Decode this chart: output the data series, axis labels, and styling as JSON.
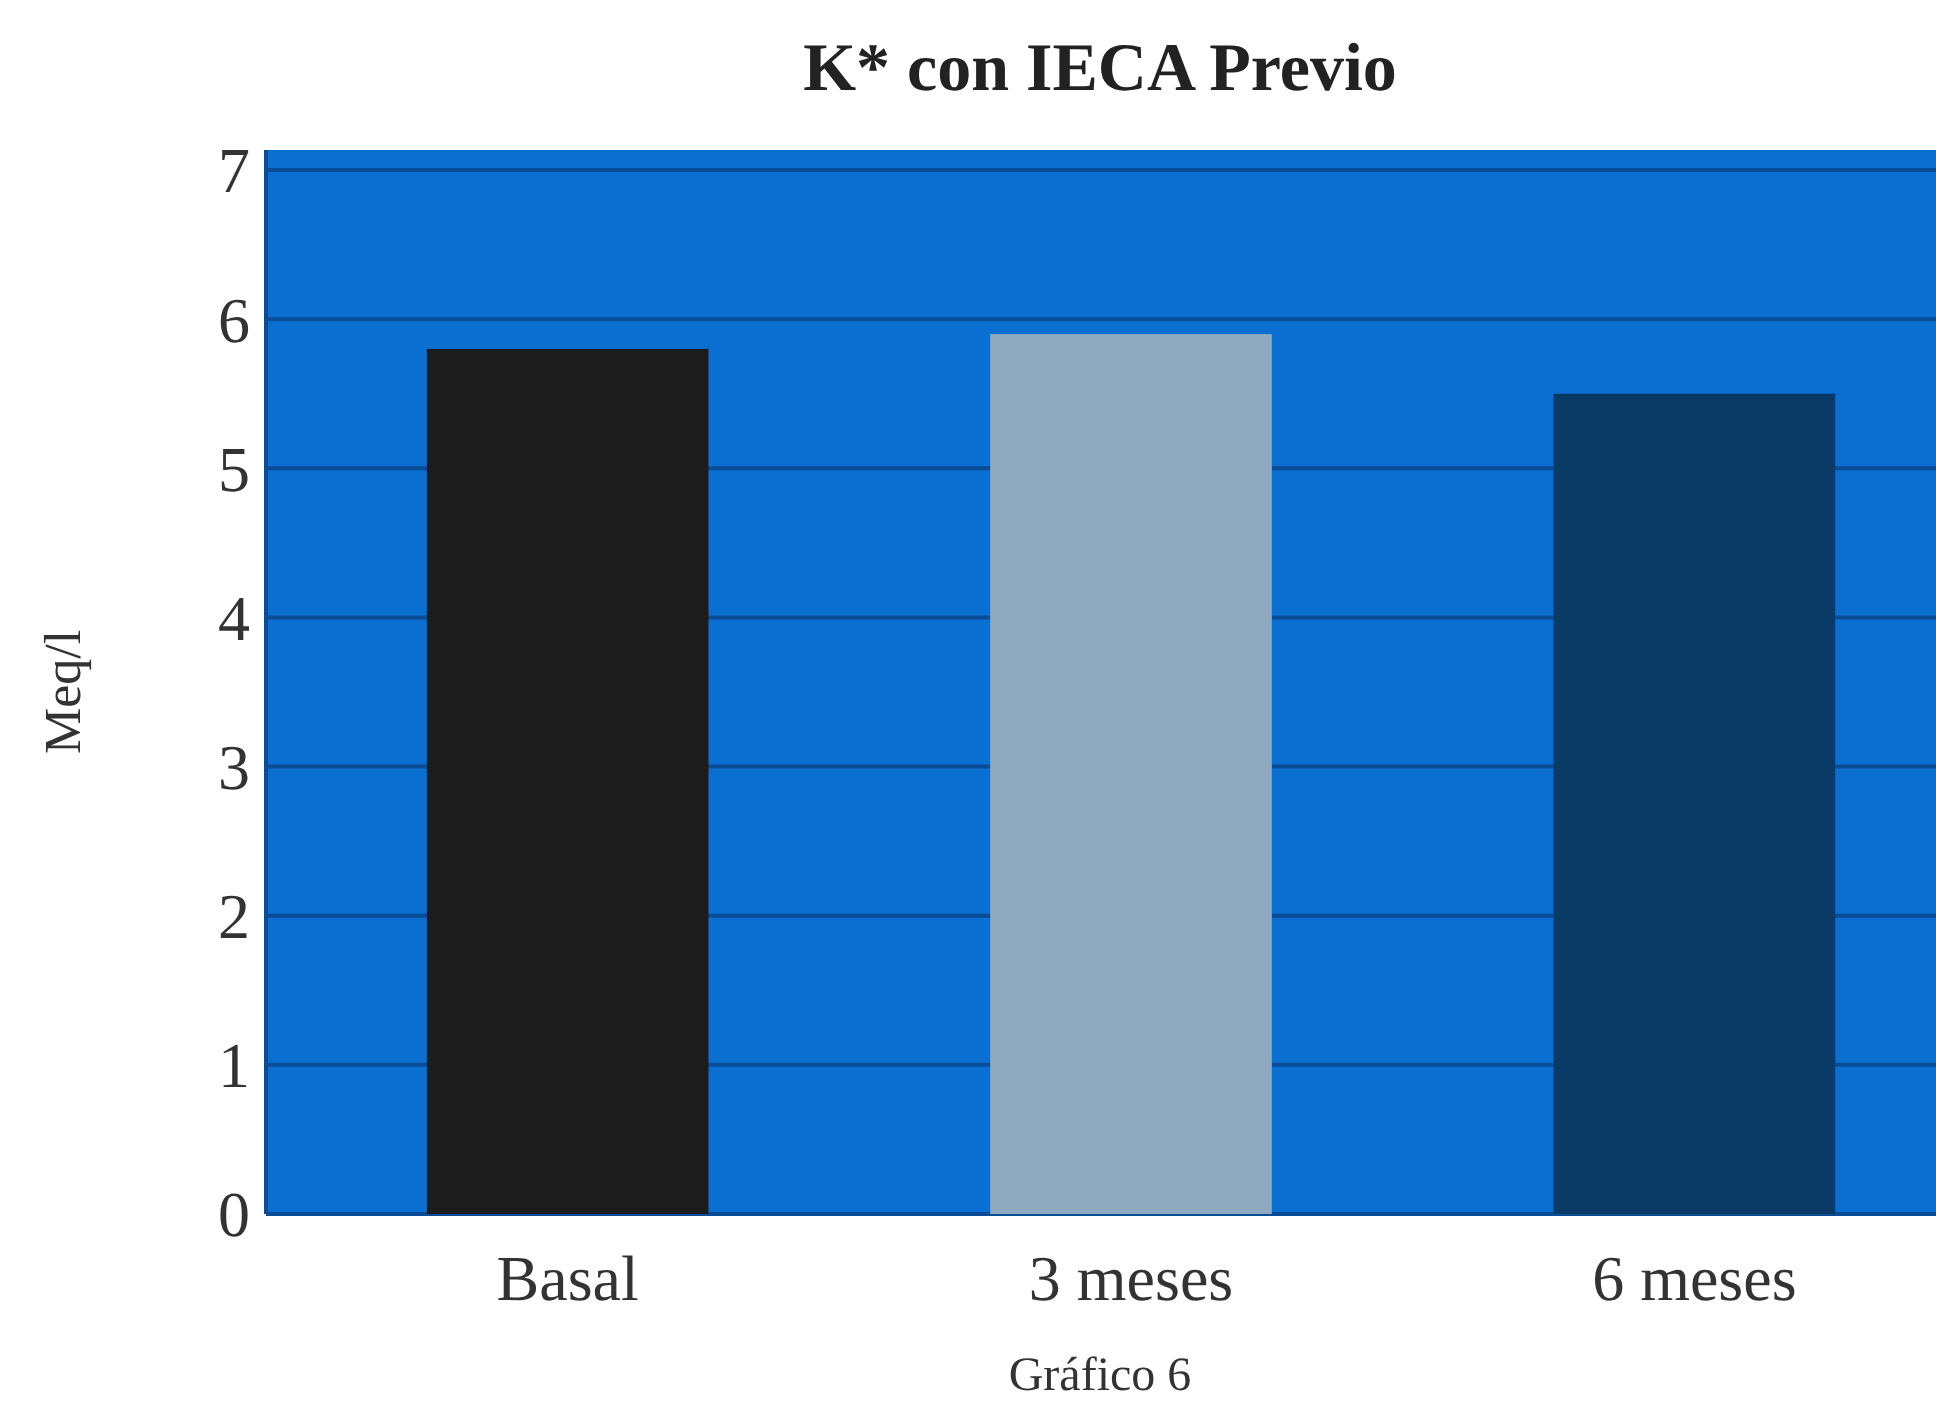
{
  "chart_data": {
    "type": "bar",
    "title": "K* con IECA Previo",
    "ylabel": "Meq/l",
    "categories": [
      "Basal",
      "3 meses",
      "6 meses"
    ],
    "values": [
      5.8,
      5.9,
      5.5
    ],
    "colors": [
      "#1c1c1c",
      "#8fa9c0",
      "#0a3a66"
    ],
    "ylim": [
      0,
      7
    ],
    "yticks": [
      0,
      1,
      2,
      3,
      4,
      5,
      6,
      7
    ],
    "grid": "y",
    "annotations": [
      "Gráfico 6"
    ]
  }
}
